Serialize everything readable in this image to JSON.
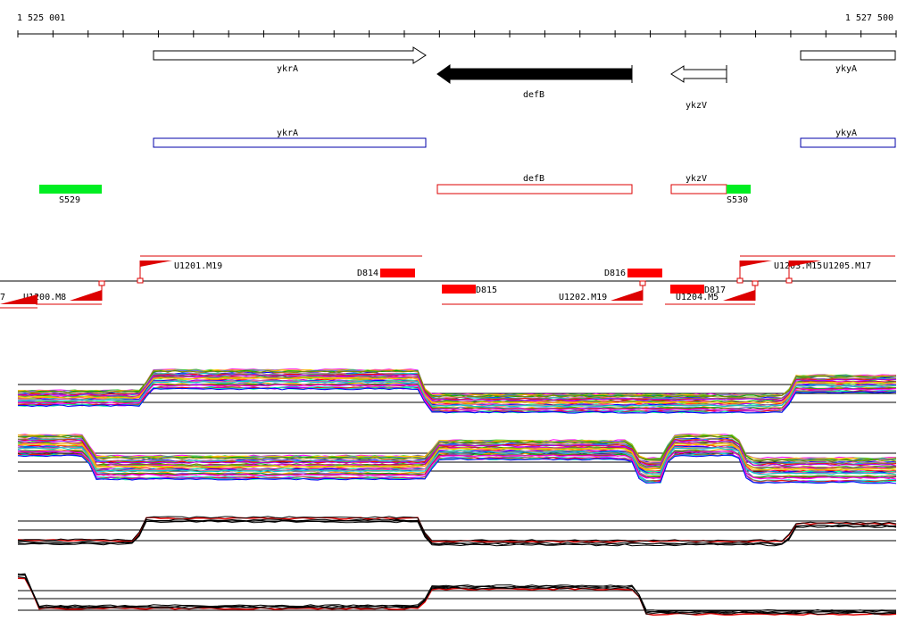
{
  "ruler": {
    "start_label": "1 525 001",
    "end_label": "1 527 500"
  },
  "genes": [
    {
      "name": "ykrA",
      "strand": "+",
      "style": "outline",
      "x1": 172,
      "x2": 477,
      "label_x": 322
    },
    {
      "name": "defB",
      "strand": "-",
      "style": "filled",
      "x1": 490,
      "x2": 708,
      "label_x": 598
    },
    {
      "name": "ykzV",
      "strand": "-",
      "style": "outline",
      "x1": 752,
      "x2": 814,
      "label_x": 780
    },
    {
      "name": "ykyA",
      "strand": "+",
      "style": "outline",
      "x1": 897,
      "x2": 1003,
      "label_x": 948
    }
  ],
  "cds_boxes": [
    {
      "name": "ykrA",
      "color": "#0000aa",
      "x1": 172,
      "x2": 477
    },
    {
      "name": "ykyA",
      "color": "#0000aa",
      "x1": 897,
      "x2": 1003
    },
    {
      "name": "defB",
      "color": "#dd0000",
      "x1": 490,
      "x2": 708
    },
    {
      "name": "ykzV",
      "color": "#dd0000",
      "x1": 752,
      "x2": 814
    }
  ],
  "s_features": [
    {
      "name": "S529",
      "color": "#00ee22",
      "x1": 44,
      "x2": 114
    },
    {
      "name": "S530",
      "color": "#00ee22",
      "x1": 814,
      "x2": 841
    }
  ],
  "transcripts": [
    {
      "name": "U1201.M19",
      "lane": "upper",
      "x1": 157,
      "x2": 473
    },
    {
      "name": "U1203.M15",
      "lane": "upper",
      "x1": 829,
      "x2": 893
    },
    {
      "name": "U1205.M17",
      "lane": "upper",
      "x1": 884,
      "x2": 1003
    },
    {
      "name": "U1200.M8",
      "lane": "lower",
      "x1": 40,
      "x2": 114
    },
    {
      "name": "U1202.M19",
      "lane": "lower",
      "x1": 495,
      "x2": 720
    },
    {
      "name": "U1204.M5",
      "lane": "lower",
      "x1": 745,
      "x2": 846
    }
  ],
  "down_features": [
    {
      "name": "D814",
      "lane": "upper",
      "x1": 426,
      "x2": 465
    },
    {
      "name": "D816",
      "lane": "upper",
      "x1": 703,
      "x2": 742
    },
    {
      "name": "D815",
      "lane": "lower",
      "x1": 495,
      "x2": 533
    },
    {
      "name": "D817",
      "lane": "lower",
      "x1": 751,
      "x2": 789
    }
  ],
  "edge_fragment_label": "7",
  "colors": {
    "forward_gene": "#000000",
    "reverse_gene_filled": "#000000",
    "cds_forward": "#0000aa",
    "cds_reverse": "#dd0000",
    "s_feature": "#00ee22",
    "transcript": "#dd0000",
    "down_feature": "#ff0000",
    "baseline": "#000000"
  },
  "profile_palette": [
    "#ff0000",
    "#00aa00",
    "#0000ff",
    "#ff00ff",
    "#00cccc",
    "#ffaa00",
    "#aa00ff",
    "#888800",
    "#ff6699",
    "#33cc33",
    "#996633",
    "#6666ff",
    "#00ff99",
    "#cc0066",
    "#999999",
    "#ffcc00"
  ]
}
